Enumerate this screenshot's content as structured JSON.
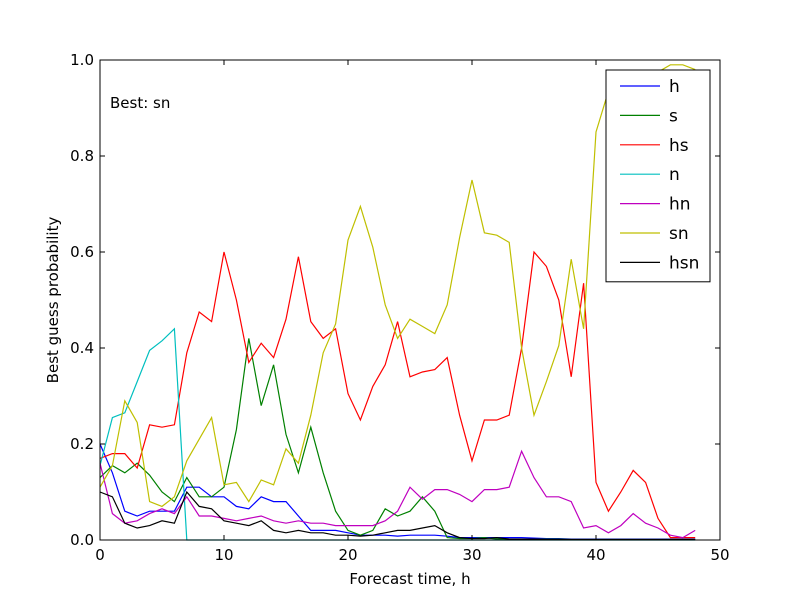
{
  "chart_data": {
    "type": "line",
    "xlabel": "Forecast time, h",
    "ylabel": "Best guess probability",
    "xlim": [
      0,
      50
    ],
    "ylim": [
      0,
      1
    ],
    "xticks": [
      0,
      10,
      20,
      30,
      40,
      50
    ],
    "yticks": [
      0.0,
      0.2,
      0.4,
      0.6,
      0.8,
      1.0
    ],
    "xtick_labels": [
      "0",
      "10",
      "20",
      "30",
      "40",
      "50"
    ],
    "ytick_labels": [
      "0.0",
      "0.2",
      "0.4",
      "0.6",
      "0.8",
      "1.0"
    ],
    "annotation": "Best: sn",
    "grid": false,
    "legend_position": "top-right",
    "x": [
      0,
      1,
      2,
      3,
      4,
      5,
      6,
      7,
      8,
      9,
      10,
      11,
      12,
      13,
      14,
      15,
      16,
      17,
      18,
      19,
      20,
      21,
      22,
      23,
      24,
      25,
      26,
      27,
      28,
      29,
      30,
      31,
      32,
      33,
      34,
      35,
      36,
      37,
      38,
      39,
      40,
      41,
      42,
      43,
      44,
      45,
      46,
      47,
      48
    ],
    "series": [
      {
        "name": "h",
        "color": "#0000ff",
        "values": [
          0.2,
          0.14,
          0.06,
          0.05,
          0.06,
          0.06,
          0.06,
          0.11,
          0.11,
          0.09,
          0.09,
          0.07,
          0.065,
          0.09,
          0.08,
          0.08,
          0.05,
          0.02,
          0.02,
          0.02,
          0.015,
          0.01,
          0.01,
          0.01,
          0.008,
          0.01,
          0.01,
          0.01,
          0.008,
          0.005,
          0.005,
          0.005,
          0.005,
          0.005,
          0.005,
          0.004,
          0.003,
          0.003,
          0.002,
          0.002,
          0.002,
          0.002,
          0.002,
          0.002,
          0.002,
          0.002,
          0.002,
          0.002,
          0.002
        ]
      },
      {
        "name": "s",
        "color": "#008000",
        "values": [
          0.13,
          0.155,
          0.14,
          0.16,
          0.135,
          0.1,
          0.08,
          0.13,
          0.09,
          0.09,
          0.11,
          0.23,
          0.42,
          0.28,
          0.365,
          0.22,
          0.14,
          0.235,
          0.14,
          0.06,
          0.02,
          0.01,
          0.02,
          0.065,
          0.05,
          0.06,
          0.09,
          0.06,
          0.005,
          0.003,
          0.003,
          0.005,
          0.002,
          0.002,
          0.002,
          0.002,
          0.002,
          0.002,
          0.001,
          0.001,
          0.001,
          0.001,
          0.001,
          0.001,
          0.001,
          0.001,
          0.001,
          0.001,
          0.001
        ]
      },
      {
        "name": "hs",
        "color": "#ff0000",
        "values": [
          0.17,
          0.18,
          0.18,
          0.15,
          0.24,
          0.235,
          0.24,
          0.39,
          0.475,
          0.455,
          0.6,
          0.5,
          0.37,
          0.41,
          0.38,
          0.46,
          0.59,
          0.455,
          0.42,
          0.44,
          0.305,
          0.25,
          0.32,
          0.365,
          0.455,
          0.34,
          0.35,
          0.355,
          0.38,
          0.26,
          0.165,
          0.25,
          0.25,
          0.26,
          0.4,
          0.6,
          0.57,
          0.5,
          0.34,
          0.535,
          0.12,
          0.06,
          0.1,
          0.145,
          0.12,
          0.045,
          0.005,
          0.005,
          0.005
        ]
      },
      {
        "name": "n",
        "color": "#00bfbf",
        "values": [
          0.155,
          0.255,
          0.265,
          0.33,
          0.395,
          0.415,
          0.44,
          0.0,
          0.0,
          0.0,
          0.0,
          0.0,
          0.0,
          0.0,
          0.0,
          0.0,
          0.0,
          0.0,
          0.0,
          0.0,
          0.0,
          0.0,
          0.0,
          0.0,
          0.0,
          0.0,
          0.0,
          0.0,
          0.0,
          0.0,
          0.0,
          0.0,
          0.0,
          0.0,
          0.0,
          0.0,
          0.0,
          0.0,
          0.0,
          0.0,
          0.0,
          0.0,
          0.0,
          0.0,
          0.0,
          0.0,
          0.0,
          0.0,
          0.0
        ]
      },
      {
        "name": "hn",
        "color": "#bf00bf",
        "values": [
          0.16,
          0.055,
          0.035,
          0.04,
          0.055,
          0.065,
          0.055,
          0.09,
          0.05,
          0.05,
          0.045,
          0.04,
          0.045,
          0.05,
          0.04,
          0.035,
          0.04,
          0.035,
          0.035,
          0.03,
          0.03,
          0.03,
          0.03,
          0.04,
          0.06,
          0.11,
          0.085,
          0.105,
          0.105,
          0.095,
          0.08,
          0.105,
          0.105,
          0.11,
          0.185,
          0.13,
          0.09,
          0.09,
          0.08,
          0.025,
          0.03,
          0.015,
          0.03,
          0.055,
          0.035,
          0.025,
          0.01,
          0.005,
          0.02
        ]
      },
      {
        "name": "sn",
        "color": "#bfbf00",
        "values": [
          0.11,
          0.155,
          0.29,
          0.245,
          0.08,
          0.07,
          0.09,
          0.165,
          0.21,
          0.255,
          0.115,
          0.12,
          0.08,
          0.125,
          0.115,
          0.19,
          0.16,
          0.26,
          0.39,
          0.45,
          0.625,
          0.695,
          0.61,
          0.49,
          0.42,
          0.46,
          0.445,
          0.43,
          0.49,
          0.63,
          0.75,
          0.64,
          0.635,
          0.62,
          0.4,
          0.26,
          0.33,
          0.405,
          0.585,
          0.44,
          0.85,
          0.935,
          0.965,
          0.975,
          0.97,
          0.975,
          0.99,
          0.99,
          0.98
        ]
      },
      {
        "name": "hsn",
        "color": "#000000",
        "values": [
          0.1,
          0.09,
          0.035,
          0.025,
          0.03,
          0.04,
          0.035,
          0.1,
          0.07,
          0.065,
          0.04,
          0.035,
          0.03,
          0.04,
          0.02,
          0.015,
          0.02,
          0.015,
          0.015,
          0.01,
          0.01,
          0.008,
          0.01,
          0.015,
          0.02,
          0.02,
          0.025,
          0.03,
          0.015,
          0.005,
          0.003,
          0.003,
          0.005,
          0.002,
          0.002,
          0.002,
          0.001,
          0.001,
          0.001,
          0.001,
          0.001,
          0.001,
          0.001,
          0.001,
          0.001,
          0.001,
          0.001,
          0.001,
          0.001
        ]
      }
    ]
  }
}
